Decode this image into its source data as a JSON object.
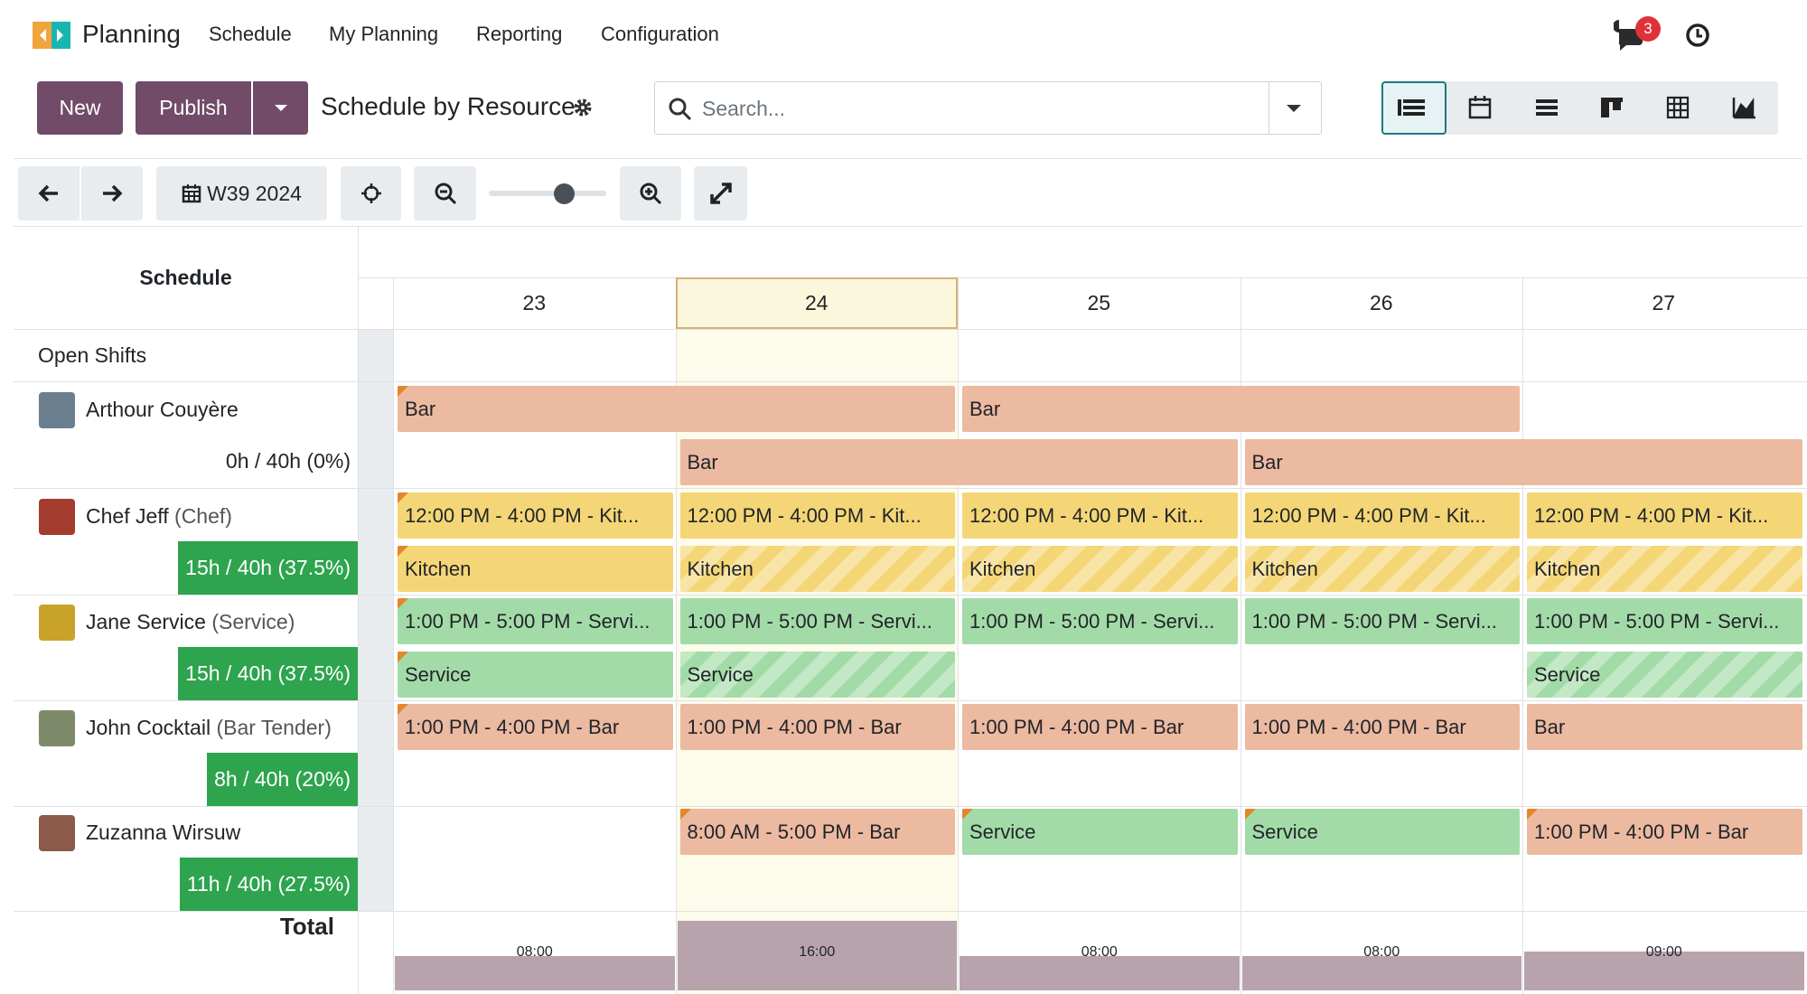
{
  "app": {
    "name": "Planning",
    "menu": [
      "Schedule",
      "My Planning",
      "Reporting",
      "Configuration"
    ],
    "message_count": 3
  },
  "control_panel": {
    "new_button": "New",
    "publish_button": "Publish",
    "title": "Schedule by Resource",
    "search_placeholder": "Search...",
    "period": "W39 2024"
  },
  "gantt": {
    "header": "Schedule",
    "days": [
      "23",
      "24",
      "25",
      "26",
      "27"
    ],
    "today": "24",
    "open_shifts": "Open Shifts",
    "resources": [
      {
        "name": "Arthour Couyère",
        "hours": "0h / 40h (0%)",
        "hours_highlight": false,
        "avatar": "#6b7f8e",
        "lanes": [
          [
            {
              "label": "Bar",
              "days": [
                "23",
                "24"
              ],
              "color": "#ecb9a1",
              "striped": false,
              "flag": true
            },
            {
              "label": "Bar",
              "days": [
                "25",
                "26"
              ],
              "color": "#ecb9a1",
              "striped": false,
              "flag": false
            }
          ],
          [
            {
              "label": "Bar",
              "days": [
                "24",
                "25"
              ],
              "color": "#ecb9a1",
              "striped": false,
              "flag": false
            },
            {
              "label": "Bar",
              "days": [
                "26",
                "27"
              ],
              "color": "#ecb9a1",
              "striped": false,
              "flag": false
            }
          ]
        ]
      },
      {
        "name": "Chef Jeff",
        "role": "(Chef)",
        "hours": "15h / 40h (37.5%)",
        "hours_highlight": true,
        "avatar": "#a33b2f",
        "lanes": [
          [
            {
              "label": "12:00 PM - 4:00 PM - Kit...",
              "days": [
                "23"
              ],
              "color": "#f5d676",
              "striped": false,
              "flag": true
            },
            {
              "label": "12:00 PM - 4:00 PM - Kit...",
              "days": [
                "24"
              ],
              "color": "#f5d676",
              "striped": false,
              "flag": false
            },
            {
              "label": "12:00 PM - 4:00 PM - Kit...",
              "days": [
                "25"
              ],
              "color": "#f5d676",
              "striped": false,
              "flag": false
            },
            {
              "label": "12:00 PM - 4:00 PM - Kit...",
              "days": [
                "26"
              ],
              "color": "#f5d676",
              "striped": false,
              "flag": false
            },
            {
              "label": "12:00 PM - 4:00 PM - Kit...",
              "days": [
                "27"
              ],
              "color": "#f5d676",
              "striped": false,
              "flag": false
            }
          ],
          [
            {
              "label": "Kitchen",
              "days": [
                "23"
              ],
              "color": "#f5d676",
              "striped": false,
              "flag": true
            },
            {
              "label": "Kitchen",
              "days": [
                "24"
              ],
              "color": "#f5d676",
              "striped": true,
              "flag": false
            },
            {
              "label": "Kitchen",
              "days": [
                "25"
              ],
              "color": "#f5d676",
              "striped": true,
              "flag": false
            },
            {
              "label": "Kitchen",
              "days": [
                "26"
              ],
              "color": "#f5d676",
              "striped": true,
              "flag": false
            },
            {
              "label": "Kitchen",
              "days": [
                "27"
              ],
              "color": "#f5d676",
              "striped": true,
              "flag": false
            }
          ]
        ]
      },
      {
        "name": "Jane Service",
        "role": "(Service)",
        "hours": "15h / 40h (37.5%)",
        "hours_highlight": true,
        "avatar": "#c9a22a",
        "lanes": [
          [
            {
              "label": "1:00 PM - 5:00 PM - Servi...",
              "days": [
                "23"
              ],
              "color": "#a3dba8",
              "striped": false,
              "flag": true
            },
            {
              "label": "1:00 PM - 5:00 PM - Servi...",
              "days": [
                "24"
              ],
              "color": "#a3dba8",
              "striped": false,
              "flag": false
            },
            {
              "label": "1:00 PM - 5:00 PM - Servi...",
              "days": [
                "25"
              ],
              "color": "#a3dba8",
              "striped": false,
              "flag": false
            },
            {
              "label": "1:00 PM - 5:00 PM - Servi...",
              "days": [
                "26"
              ],
              "color": "#a3dba8",
              "striped": false,
              "flag": false
            },
            {
              "label": "1:00 PM - 5:00 PM - Servi...",
              "days": [
                "27"
              ],
              "color": "#a3dba8",
              "striped": false,
              "flag": false
            }
          ],
          [
            {
              "label": "Service",
              "days": [
                "23"
              ],
              "color": "#a3dba8",
              "striped": false,
              "flag": true
            },
            {
              "label": "Service",
              "days": [
                "24"
              ],
              "color": "#a3dba8",
              "striped": true,
              "flag": false
            },
            {
              "label": "Service",
              "days": [
                "27"
              ],
              "color": "#a3dba8",
              "striped": true,
              "flag": false
            }
          ]
        ]
      },
      {
        "name": "John Cocktail",
        "role": "(Bar Tender)",
        "hours": "8h / 40h (20%)",
        "hours_highlight": true,
        "avatar": "#7d8a6a",
        "lanes": [
          [
            {
              "label": "1:00 PM - 4:00 PM - Bar",
              "days": [
                "23"
              ],
              "color": "#ecb9a1",
              "striped": false,
              "flag": true
            },
            {
              "label": "1:00 PM - 4:00 PM - Bar",
              "days": [
                "24"
              ],
              "color": "#ecb9a1",
              "striped": false,
              "flag": false
            },
            {
              "label": "1:00 PM - 4:00 PM - Bar",
              "days": [
                "25"
              ],
              "color": "#ecb9a1",
              "striped": false,
              "flag": false
            },
            {
              "label": "1:00 PM - 4:00 PM - Bar",
              "days": [
                "26"
              ],
              "color": "#ecb9a1",
              "striped": false,
              "flag": false
            },
            {
              "label": "Bar",
              "days": [
                "27"
              ],
              "color": "#ecb9a1",
              "striped": false,
              "flag": false
            }
          ]
        ]
      },
      {
        "name": "Zuzanna Wirsuw",
        "hours": "11h / 40h (27.5%)",
        "hours_highlight": true,
        "avatar": "#8c5a4a",
        "lanes": [
          [
            {
              "label": "8:00 AM - 5:00 PM - Bar",
              "days": [
                "24"
              ],
              "color": "#ecb9a1",
              "striped": false,
              "flag": true
            },
            {
              "label": "Service",
              "days": [
                "25"
              ],
              "color": "#a3dba8",
              "striped": false,
              "flag": true
            },
            {
              "label": "Service",
              "days": [
                "26"
              ],
              "color": "#a3dba8",
              "striped": false,
              "flag": true
            },
            {
              "label": "1:00 PM - 4:00 PM - Bar",
              "days": [
                "27"
              ],
              "color": "#ecb9a1",
              "striped": false,
              "flag": true
            }
          ]
        ]
      }
    ],
    "total_label": "Total",
    "totals": [
      {
        "value": 8,
        "label": "08:00"
      },
      {
        "value": 16,
        "label": "16:00"
      },
      {
        "value": 8,
        "label": "08:00"
      },
      {
        "value": 8,
        "label": "08:00"
      },
      {
        "value": 9,
        "label": "09:00"
      }
    ],
    "total_color": "#b8a3ad"
  }
}
